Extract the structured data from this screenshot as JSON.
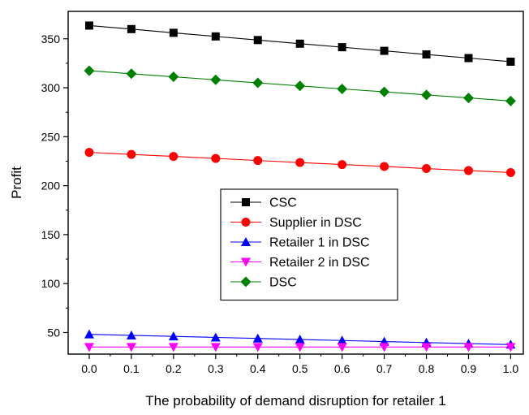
{
  "chart_data": {
    "type": "line",
    "title": "",
    "xlabel": "The probability of demand disruption for retailer 1",
    "ylabel": "Profit",
    "x": [
      0.0,
      0.1,
      0.2,
      0.3,
      0.4,
      0.5,
      0.6,
      0.7,
      0.8,
      0.9,
      1.0
    ],
    "xtick_labels": [
      "0.0",
      "0.1",
      "0.2",
      "0.3",
      "0.4",
      "0.5",
      "0.6",
      "0.7",
      "0.8",
      "0.9",
      "1.0"
    ],
    "ytick_values": [
      50,
      100,
      150,
      200,
      250,
      300,
      350
    ],
    "ytick_labels": [
      "50",
      "100",
      "150",
      "200",
      "250",
      "300",
      "350"
    ],
    "xlim": [
      -0.05,
      1.03
    ],
    "ylim": [
      28,
      378
    ],
    "grid": false,
    "legend_placement": "center",
    "series": [
      {
        "name": "CSC",
        "color": "#000000",
        "marker": "square",
        "values": [
          363.5,
          359.9,
          356.1,
          352.4,
          348.7,
          345.0,
          341.4,
          337.7,
          334.0,
          330.3,
          326.6
        ]
      },
      {
        "name": "Supplier in DSC",
        "color": "#ff0000",
        "marker": "circle",
        "values": [
          234.0,
          231.9,
          229.9,
          227.8,
          225.7,
          223.6,
          221.6,
          219.6,
          217.5,
          215.4,
          213.4
        ]
      },
      {
        "name": "Retailer 1 in DSC",
        "color": "#0000ff",
        "marker": "triangle-up",
        "values": [
          48.2,
          47.1,
          46.1,
          45.0,
          44.0,
          42.9,
          41.9,
          40.8,
          39.8,
          38.7,
          37.7
        ]
      },
      {
        "name": "Retailer 2 in DSC",
        "color": "#ff00ff",
        "marker": "triangle-down",
        "values": [
          35.2,
          35.2,
          35.2,
          35.2,
          35.2,
          35.2,
          35.2,
          35.2,
          35.2,
          35.2,
          35.2
        ]
      },
      {
        "name": "DSC",
        "color": "#008000",
        "marker": "diamond",
        "values": [
          317.4,
          314.3,
          311.2,
          308.1,
          305.0,
          301.9,
          298.8,
          295.8,
          292.7,
          289.6,
          286.5
        ]
      }
    ]
  }
}
